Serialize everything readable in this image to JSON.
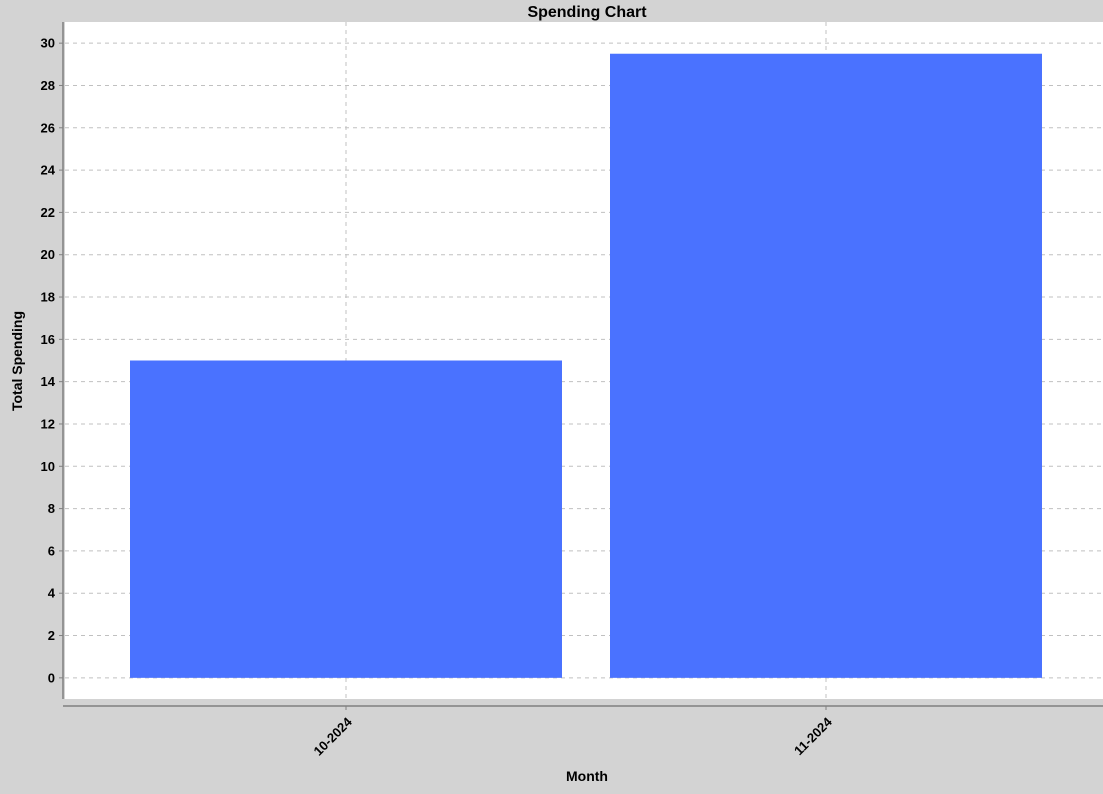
{
  "chart_data": {
    "type": "bar",
    "title": "Spending Chart",
    "xlabel": "Month",
    "ylabel": "Total Spending",
    "categories": [
      "10-2024",
      "11-2024"
    ],
    "values": [
      15.0,
      29.5
    ],
    "ylim": [
      -1.0,
      31.0
    ],
    "yticks": [
      0,
      2,
      4,
      6,
      8,
      10,
      12,
      14,
      16,
      18,
      20,
      22,
      24,
      26,
      28,
      30
    ],
    "grid": true,
    "legend": "none",
    "colors": {
      "bar": "#4a72ff",
      "background": "#d3d3d3",
      "plot_background": "#ffffff",
      "grid": "#c0c0c0",
      "axis": "#808080"
    }
  }
}
